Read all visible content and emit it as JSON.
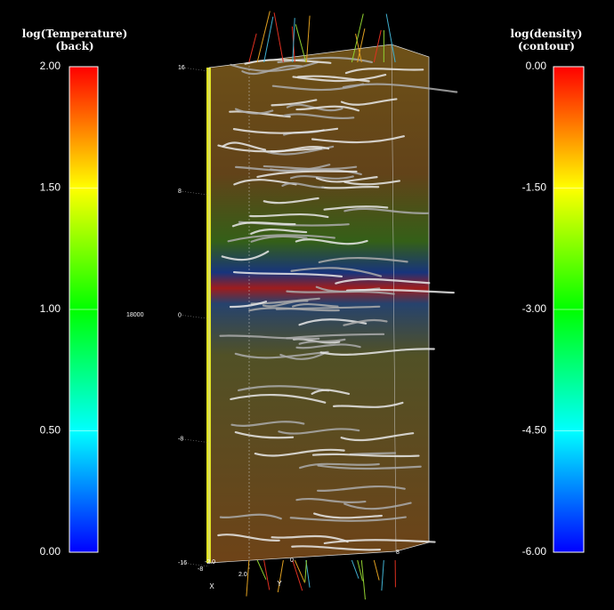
{
  "left_colorbar": {
    "title": [
      "log(Temperature)",
      "(back)"
    ],
    "ticks": [
      "2.00",
      "1.50",
      "1.00",
      "0.50",
      "0.00"
    ]
  },
  "right_colorbar": {
    "title": [
      "log(density)",
      "(contour)"
    ],
    "ticks": [
      "0.00",
      "-1.50",
      "-3.00",
      "-4.50",
      "-6.00"
    ]
  },
  "time_label": "18000",
  "z_axis_ticks": [
    "16",
    "8",
    "0",
    "-8",
    "-16"
  ],
  "bottom_labels": {
    "x_axis": "X",
    "y_axis": "Y",
    "x_ticks": [
      "-8",
      "-2.0",
      "2.0"
    ],
    "y_ticks": [
      "0",
      "8"
    ]
  }
}
